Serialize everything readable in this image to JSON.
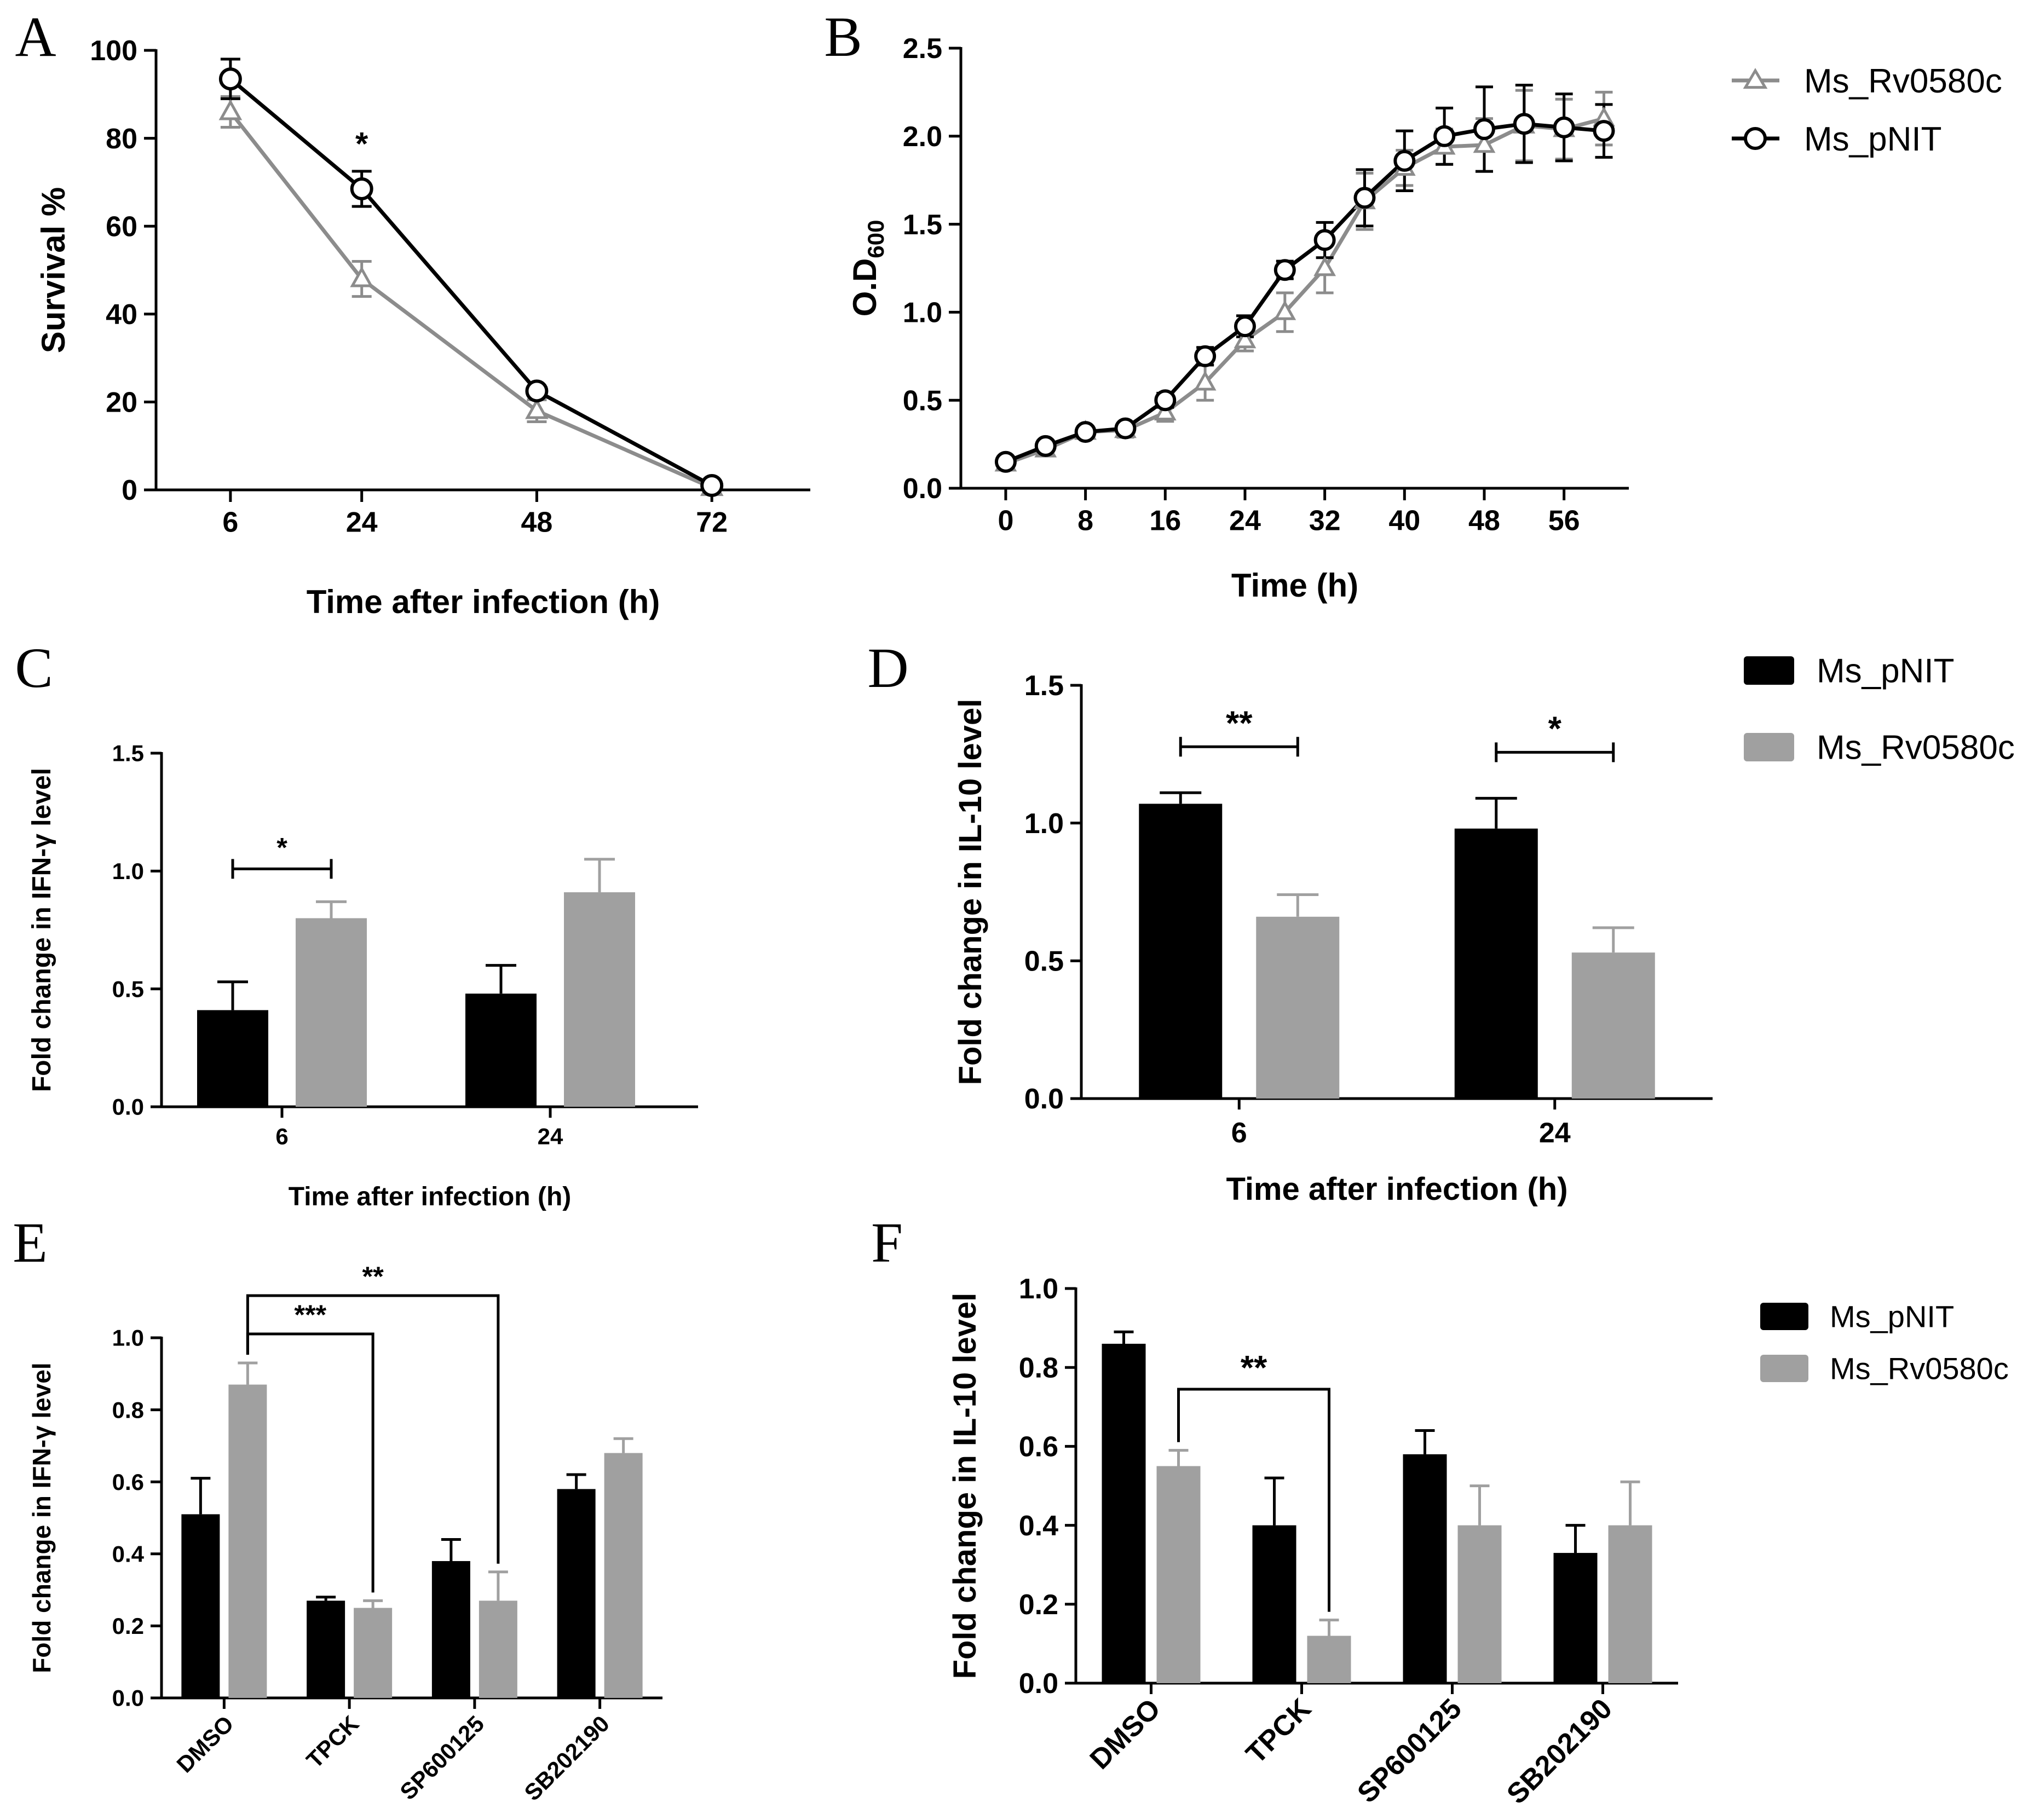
{
  "figure": {
    "legends": {
      "line_legend": [
        {
          "label": "Ms_Rv0580c",
          "marker": "triangle",
          "color": "#8c8c8c"
        },
        {
          "label": "Ms_pNIT",
          "marker": "circle",
          "color": "#000000"
        }
      ],
      "bar_legend": [
        {
          "label": "Ms_pNIT",
          "color": "#000000"
        },
        {
          "label": "Ms_Rv0580c",
          "color": "#a0a0a0"
        }
      ]
    },
    "colors": {
      "dark": "#000000",
      "light": "#a0a0a0",
      "line_light": "#8c8c8c"
    }
  },
  "chart_data": [
    {
      "panel": "A",
      "type": "line",
      "xlabel": "Time after infection (h)",
      "ylabel": "Survival %",
      "x": [
        6,
        24,
        48,
        72
      ],
      "xticks": [
        "6",
        "24",
        "48",
        "72"
      ],
      "ylim": [
        0,
        100
      ],
      "yticks": [
        "0",
        "20",
        "40",
        "60",
        "80",
        "100"
      ],
      "series": [
        {
          "name": "Ms_Rv0580c",
          "values": [
            86,
            48,
            18,
            0.5
          ],
          "errors": [
            3.5,
            4,
            2.5,
            0
          ]
        },
        {
          "name": "Ms_pNIT",
          "values": [
            93.5,
            68.5,
            22.5,
            1
          ],
          "errors": [
            4.5,
            4,
            0,
            0
          ]
        }
      ],
      "annotations": [
        {
          "text": "*",
          "x": 24
        }
      ]
    },
    {
      "panel": "B",
      "type": "line",
      "xlabel": "Time (h)",
      "ylabel": "O.D",
      "ylabel_sub": "600",
      "x": [
        0,
        4,
        8,
        12,
        16,
        20,
        24,
        28,
        32,
        36,
        40,
        44,
        48,
        52,
        56,
        60
      ],
      "xticks": [
        "0",
        "8",
        "16",
        "24",
        "32",
        "40",
        "48",
        "56"
      ],
      "ylim": [
        0,
        2.5
      ],
      "yticks": [
        "0.0",
        "0.5",
        "1.0",
        "1.5",
        "2.0",
        "2.5"
      ],
      "series": [
        {
          "name": "Ms_Rv0580c",
          "values": [
            0.14,
            0.22,
            0.32,
            0.33,
            0.43,
            0.6,
            0.84,
            1.0,
            1.25,
            1.63,
            1.82,
            1.94,
            1.95,
            2.06,
            2.04,
            2.1
          ],
          "errors": [
            0.02,
            0.03,
            0.03,
            0.04,
            0.05,
            0.1,
            0.06,
            0.11,
            0.14,
            0.16,
            0.1,
            0.1,
            0.15,
            0.2,
            0.17,
            0.15
          ]
        },
        {
          "name": "Ms_pNIT",
          "values": [
            0.15,
            0.24,
            0.32,
            0.34,
            0.5,
            0.75,
            0.92,
            1.24,
            1.41,
            1.65,
            1.86,
            2.0,
            2.04,
            2.07,
            2.05,
            2.03
          ],
          "errors": [
            0.02,
            0.03,
            0.03,
            0.03,
            0.04,
            0.05,
            0.06,
            0.05,
            0.1,
            0.16,
            0.17,
            0.16,
            0.24,
            0.22,
            0.19,
            0.15
          ]
        }
      ]
    },
    {
      "panel": "C",
      "type": "bar",
      "xlabel": "Time after infection (h)",
      "ylabel": "Fold change in IFN-γ level",
      "categories": [
        "6",
        "24"
      ],
      "ylim": [
        0,
        1.5
      ],
      "yticks": [
        "0.0",
        "0.5",
        "1.0",
        "1.5"
      ],
      "series": [
        {
          "name": "Ms_pNIT",
          "values": [
            0.41,
            0.48
          ],
          "errors": [
            0.12,
            0.12
          ]
        },
        {
          "name": "Ms_Rv0580c",
          "values": [
            0.8,
            0.91
          ],
          "errors": [
            0.07,
            0.14
          ]
        }
      ],
      "annotations": [
        {
          "text": "*",
          "group": 0
        }
      ]
    },
    {
      "panel": "D",
      "type": "bar",
      "xlabel": "Time after infection (h)",
      "ylabel": "Fold change in IL-10 level",
      "categories": [
        "6",
        "24"
      ],
      "ylim": [
        0,
        1.5
      ],
      "yticks": [
        "0.0",
        "0.5",
        "1.0",
        "1.5"
      ],
      "series": [
        {
          "name": "Ms_pNIT",
          "values": [
            1.07,
            0.98
          ],
          "errors": [
            0.04,
            0.11
          ]
        },
        {
          "name": "Ms_Rv0580c",
          "values": [
            0.66,
            0.53
          ],
          "errors": [
            0.08,
            0.09
          ]
        }
      ],
      "annotations": [
        {
          "text": "**",
          "group": 0
        },
        {
          "text": "*",
          "group": 1
        }
      ]
    },
    {
      "panel": "E",
      "type": "bar",
      "xlabel": "",
      "ylabel": "Fold change in IFN-γ level",
      "categories": [
        "DMSO",
        "TPCK",
        "SP600125",
        "SB202190"
      ],
      "ylim": [
        0,
        1.0
      ],
      "yticks": [
        "0.0",
        "0.2",
        "0.4",
        "0.6",
        "0.8",
        "1.0"
      ],
      "series": [
        {
          "name": "Ms_pNIT",
          "values": [
            0.51,
            0.27,
            0.38,
            0.58
          ],
          "errors": [
            0.1,
            0.01,
            0.06,
            0.04
          ]
        },
        {
          "name": "Ms_Rv0580c",
          "values": [
            0.87,
            0.25,
            0.27,
            0.68
          ],
          "errors": [
            0.06,
            0.02,
            0.08,
            0.04
          ]
        }
      ],
      "annotations": [
        {
          "text": "***",
          "from": 0,
          "to": 1
        },
        {
          "text": "**",
          "from": 0,
          "to": 2
        }
      ]
    },
    {
      "panel": "F",
      "type": "bar",
      "xlabel": "",
      "ylabel": "Fold change in IL-10 level",
      "categories": [
        "DMSO",
        "TPCK",
        "SP600125",
        "SB202190"
      ],
      "ylim": [
        0,
        1.0
      ],
      "yticks": [
        "0.0",
        "0.2",
        "0.4",
        "0.6",
        "0.8",
        "1.0"
      ],
      "series": [
        {
          "name": "Ms_pNIT",
          "values": [
            0.86,
            0.4,
            0.58,
            0.33
          ],
          "errors": [
            0.03,
            0.12,
            0.06,
            0.07
          ]
        },
        {
          "name": "Ms_Rv0580c",
          "values": [
            0.55,
            0.12,
            0.4,
            0.4
          ],
          "errors": [
            0.04,
            0.04,
            0.1,
            0.11
          ]
        }
      ],
      "annotations": [
        {
          "text": "**",
          "from": 0,
          "to": 1
        }
      ]
    }
  ]
}
